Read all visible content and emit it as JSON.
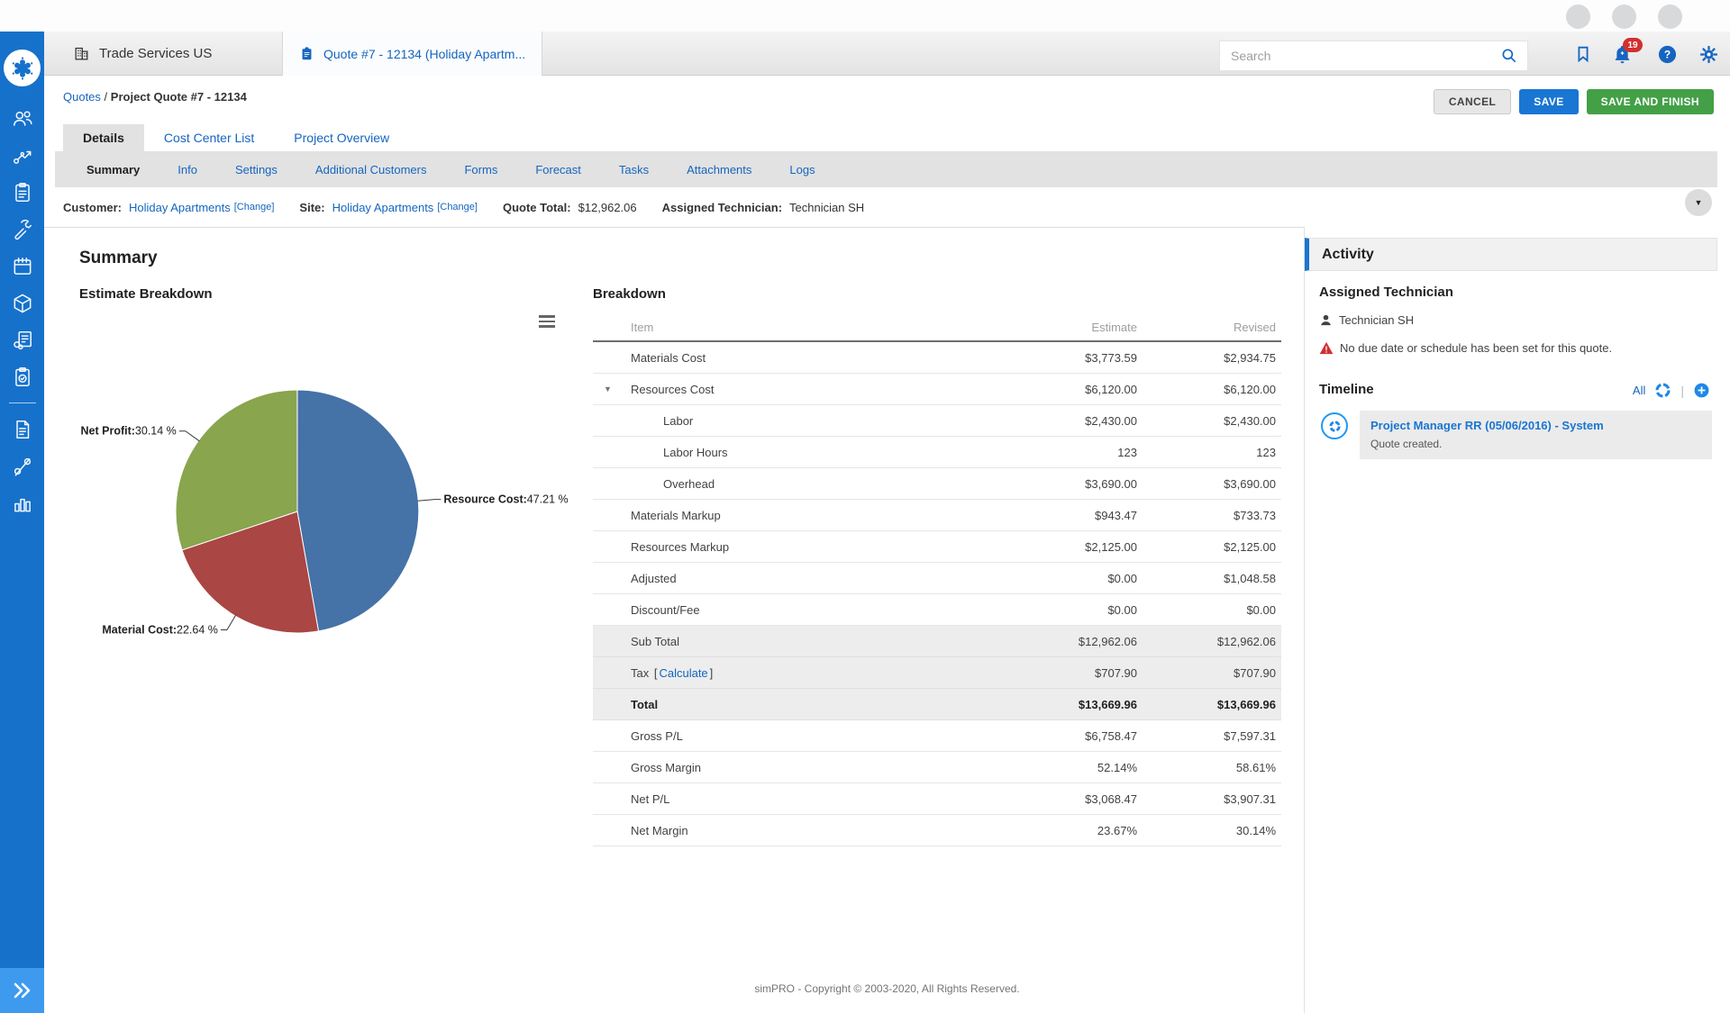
{
  "topnav": {
    "company_tab": "Trade Services US",
    "quote_tab": "Quote #7 - 12134 (Holiday Apartm...",
    "search_placeholder": "Search",
    "notification_count": "19"
  },
  "breadcrumb": {
    "link": "Quotes",
    "separator": "/",
    "current": "Project Quote #7 - 12134"
  },
  "actions": {
    "cancel": "CANCEL",
    "save": "SAVE",
    "save_finish": "SAVE AND FINISH"
  },
  "tabs": [
    {
      "label": "Details",
      "active": true
    },
    {
      "label": "Cost Center List",
      "active": false
    },
    {
      "label": "Project Overview",
      "active": false
    }
  ],
  "subtabs": {
    "active": "Summary",
    "items": [
      "Summary",
      "Info",
      "Settings",
      "Additional Customers",
      "Forms",
      "Forecast",
      "Tasks",
      "Attachments",
      "Logs"
    ]
  },
  "quote_info": {
    "customer_label": "Customer:",
    "customer": "Holiday Apartments",
    "change": "[Change]",
    "site_label": "Site:",
    "site": "Holiday Apartments",
    "site_change": "[Change]",
    "total_label": "Quote Total:",
    "total": "$12,962.06",
    "tech_label": "Assigned Technician:",
    "tech": "Technician SH"
  },
  "summary_title": "Summary",
  "chart_data": {
    "type": "pie",
    "title": "Estimate Breakdown",
    "labels": [
      "Resource Cost",
      "Material Cost",
      "Net Profit"
    ],
    "values": [
      47.21,
      22.64,
      30.14
    ],
    "colors": [
      "#4572A7",
      "#AA4643",
      "#89A54E"
    ],
    "unit": " %",
    "start_angle_deg": 0,
    "direction": "clockwise",
    "legend": "none"
  },
  "breakdown": {
    "title": "Breakdown",
    "columns": [
      "Item",
      "Estimate",
      "Revised"
    ],
    "rows": [
      {
        "item": "Materials Cost",
        "estimate": "$3,773.59",
        "revised": "$2,934.75"
      },
      {
        "item": "Resources Cost",
        "estimate": "$6,120.00",
        "revised": "$6,120.00",
        "expander": true
      },
      {
        "item": "Labor",
        "estimate": "$2,430.00",
        "revised": "$2,430.00",
        "indent": true
      },
      {
        "item": "Labor Hours",
        "estimate": "123",
        "revised": "123",
        "indent": true
      },
      {
        "item": "Overhead",
        "estimate": "$3,690.00",
        "revised": "$3,690.00",
        "indent": true
      },
      {
        "item": "Materials Markup",
        "estimate": "$943.47",
        "revised": "$733.73"
      },
      {
        "item": "Resources Markup",
        "estimate": "$2,125.00",
        "revised": "$2,125.00"
      },
      {
        "item": "Adjusted",
        "estimate": "$0.00",
        "revised": "$1,048.58"
      },
      {
        "item": "Discount/Fee",
        "estimate": "$0.00",
        "revised": "$0.00"
      },
      {
        "item": "Sub Total",
        "estimate": "$12,962.06",
        "revised": "$12,962.06",
        "shade": true
      },
      {
        "item": "Tax",
        "calculate": "Calculate",
        "estimate": "$707.90",
        "revised": "$707.90",
        "shade": true
      },
      {
        "item": "Total",
        "estimate": "$13,669.96",
        "revised": "$13,669.96",
        "shade": true,
        "bold": true
      },
      {
        "item": "Gross P/L",
        "estimate": "$6,758.47",
        "revised": "$7,597.31"
      },
      {
        "item": "Gross Margin",
        "estimate": "52.14%",
        "revised": "58.61%"
      },
      {
        "item": "Net P/L",
        "estimate": "$3,068.47",
        "revised": "$3,907.31"
      },
      {
        "item": "Net Margin",
        "estimate": "23.67%",
        "revised": "30.14%"
      }
    ]
  },
  "activity": {
    "title": "Activity",
    "assigned_title": "Assigned Technician",
    "technician": "Technician SH",
    "warning": "No due date or schedule has been set for this quote.",
    "timeline_title": "Timeline",
    "all_link": "All",
    "entry_title": "Project Manager RR (05/06/2016) - System",
    "entry_body": "Quote created."
  },
  "footer": {
    "copyright": "simPRO - Copyright © 2003-2020, All Rights Reserved."
  }
}
